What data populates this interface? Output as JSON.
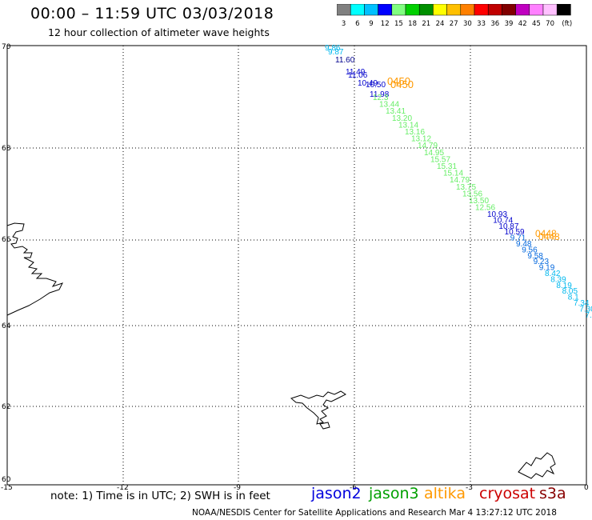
{
  "header": {
    "title": "00:00 – 11:59 UTC 03/03/2018",
    "subtitle": "12 hour collection of altimeter wave heights"
  },
  "colorbar": {
    "labels": [
      "3",
      "6",
      "9",
      "12",
      "15",
      "18",
      "21",
      "24",
      "27",
      "30",
      "33",
      "36",
      "39",
      "42",
      "45",
      "70",
      "(ft)"
    ],
    "colors": [
      "#808080",
      "#00ffff",
      "#00c0ff",
      "#0000ff",
      "#80ff80",
      "#00d000",
      "#009000",
      "#ffff00",
      "#ffc000",
      "#ff8000",
      "#ff0000",
      "#c00000",
      "#800000",
      "#c000c0",
      "#ff80ff",
      "#ffc0ff",
      "#000000"
    ]
  },
  "axes": {
    "lat_labels": [
      "70",
      "68",
      "66",
      "64",
      "62",
      "60"
    ],
    "lon_labels": [
      "-15",
      "-12",
      "-9",
      "-6",
      "-3",
      "0"
    ]
  },
  "wave_labels": {
    "jason2_track_1": [
      "9.86",
      "9.87",
      "11.60",
      "11.49",
      "11.06",
      "10.49",
      "10.50",
      "11.98"
    ],
    "jason3_track_1": [
      "12.3",
      "13.44",
      "13.41",
      "13.20",
      "13.14",
      "13.16",
      "13.12",
      "14.79",
      "14.95",
      "15.57",
      "15.31",
      "15.14",
      "14.79",
      "13.75",
      "13.56",
      "13.50",
      "12.56"
    ],
    "altika_track_1": [
      "0450",
      "0450"
    ],
    "jason2_track_2": [
      "10.93",
      "10.74",
      "10.87",
      "10.59",
      "9.71",
      "9.48",
      "9.56",
      "9.58",
      "9.23",
      "9.19",
      "8.42",
      "8.39",
      "8.19",
      "8.05",
      "8.1",
      "7.34",
      "7.30",
      "7.59"
    ],
    "altika_track_2": [
      "0448",
      "0448"
    ]
  },
  "notes": {
    "note": "note:  1) Time is in UTC;  2) SWH is in feet"
  },
  "legend": {
    "items": [
      {
        "label": "jason2",
        "color": "#0000dd"
      },
      {
        "label": "jason3",
        "color": "#00a000"
      },
      {
        "label": "altika",
        "color": "#ff9900"
      },
      {
        "label": "cryosat",
        "color": "#cc0000"
      },
      {
        "label": "s3a",
        "color": "#880000"
      }
    ]
  },
  "footer": {
    "credit": "NOAA/NESDIS Center for Satellite Applications and Research    Mar  4 13:27:12 UTC 2018"
  }
}
